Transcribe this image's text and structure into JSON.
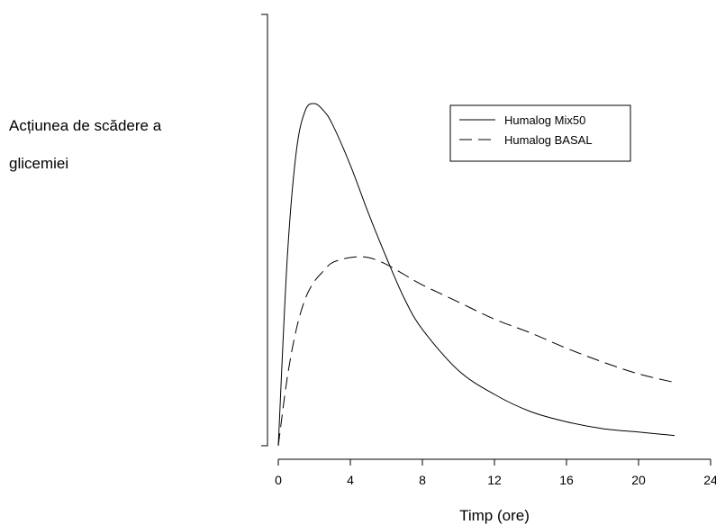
{
  "chart_data": {
    "type": "line",
    "ylabel_lines": [
      "Acțiunea de scădere a",
      "glicemiei"
    ],
    "xlabel": "Timp (ore)",
    "xlim": [
      0,
      24
    ],
    "ylim": [
      0,
      1
    ],
    "x_ticks": [
      0,
      4,
      8,
      12,
      16,
      20,
      24
    ],
    "legend_position": "top-right",
    "grid": false,
    "series": [
      {
        "name": "Humalog Mix50",
        "line_style": "solid",
        "x": [
          0,
          0.5,
          1,
          1.5,
          2,
          2.5,
          3,
          4,
          5,
          6,
          7,
          8,
          10,
          12,
          14,
          16,
          18,
          20,
          22
        ],
        "y": [
          0,
          0.55,
          0.86,
          0.98,
          1.0,
          0.98,
          0.94,
          0.82,
          0.68,
          0.55,
          0.43,
          0.34,
          0.22,
          0.15,
          0.1,
          0.07,
          0.05,
          0.04,
          0.03
        ]
      },
      {
        "name": "Humalog BASAL",
        "line_style": "dashed",
        "x": [
          0,
          0.5,
          1,
          1.5,
          2,
          2.5,
          3,
          4,
          5,
          6,
          7,
          8,
          10,
          12,
          14,
          16,
          18,
          20,
          22
        ],
        "y": [
          0,
          0.2,
          0.34,
          0.43,
          0.48,
          0.51,
          0.535,
          0.55,
          0.55,
          0.53,
          0.5,
          0.47,
          0.42,
          0.37,
          0.33,
          0.285,
          0.245,
          0.21,
          0.185
        ]
      }
    ]
  }
}
